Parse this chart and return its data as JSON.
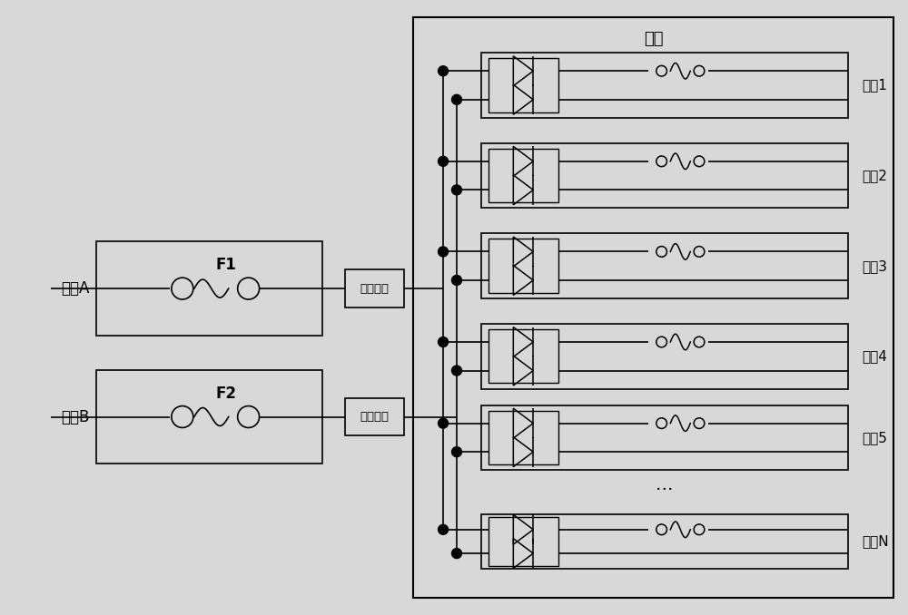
{
  "bg_color": "#d8d8d8",
  "fg_color": "#000000",
  "title_backplane": "背板",
  "power_a_label": "电源A",
  "power_b_label": "电源B",
  "fuse_a_label": "F1",
  "fuse_b_label": "F2",
  "protect_label": "保护电路",
  "slots": [
    "槽位1",
    "槽位2",
    "槽位3",
    "槽位4",
    "槽位5",
    "槽位N"
  ],
  "font_size_chinese": 12,
  "font_size_fuse_label": 12
}
